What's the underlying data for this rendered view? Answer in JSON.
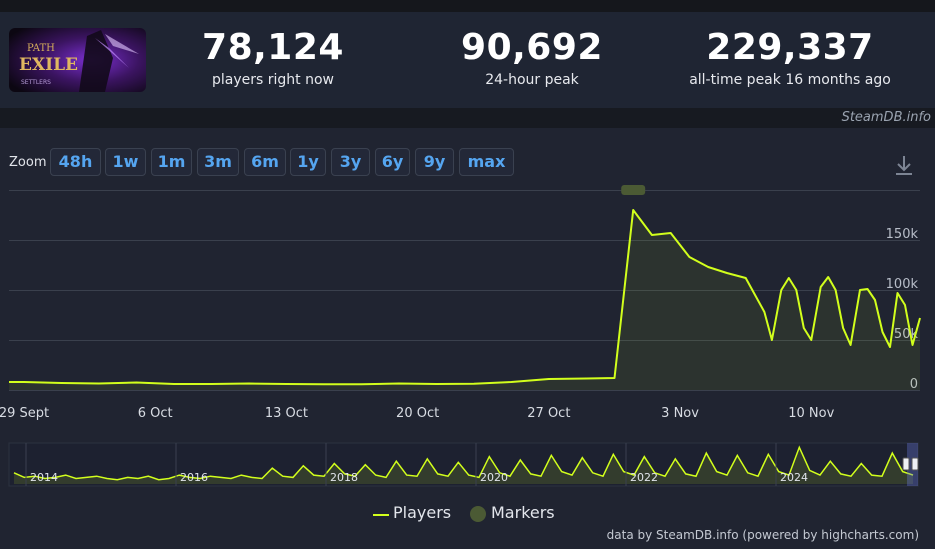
{
  "stats": [
    {
      "value": "78,124",
      "label": "players right now"
    },
    {
      "value": "90,692",
      "label": "24-hour peak"
    },
    {
      "value": "229,337",
      "label": "all-time peak 16 months ago"
    }
  ],
  "credit_top": "SteamDB.info",
  "zoom": {
    "label": "Zoom",
    "buttons": [
      "48h",
      "1w",
      "1m",
      "3m",
      "6m",
      "1y",
      "3y",
      "6y",
      "9y",
      "max"
    ]
  },
  "legend": {
    "players": "Players",
    "markers": "Markers"
  },
  "credit_bottom": "data by SteamDB.info (powered by highcharts.com)",
  "colors": {
    "series": "#d2ff1c",
    "marker": "#4b5a34",
    "accent": "#55a5f0"
  },
  "icons": {
    "download": "download-icon",
    "game": "game-logo"
  },
  "chart_data": {
    "type": "line",
    "y_ticks": [
      0,
      50000,
      100000,
      150000
    ],
    "y_tick_labels": [
      "0",
      "50k",
      "100k",
      "150k"
    ],
    "ylim": [
      0,
      200000
    ],
    "x_ticks": [
      {
        "label": "29 Sept",
        "day": 0
      },
      {
        "label": "6 Oct",
        "day": 7
      },
      {
        "label": "13 Oct",
        "day": 14
      },
      {
        "label": "20 Oct",
        "day": 21
      },
      {
        "label": "27 Oct",
        "day": 28
      },
      {
        "label": "3 Nov",
        "day": 35
      },
      {
        "label": "10 Nov",
        "day": 42
      }
    ],
    "xlim": [
      -0.8,
      47.8
    ],
    "series": [
      {
        "name": "Players",
        "points": [
          [
            -0.8,
            8000
          ],
          [
            0,
            8000
          ],
          [
            2,
            7000
          ],
          [
            4,
            6500
          ],
          [
            6,
            7500
          ],
          [
            8,
            6000
          ],
          [
            10,
            6000
          ],
          [
            12,
            6500
          ],
          [
            14,
            6000
          ],
          [
            16,
            5800
          ],
          [
            18,
            5800
          ],
          [
            20,
            6500
          ],
          [
            22,
            6000
          ],
          [
            24,
            6200
          ],
          [
            26,
            8000
          ],
          [
            28,
            11000
          ],
          [
            30,
            11500
          ],
          [
            31.5,
            12000
          ],
          [
            32.5,
            180000
          ],
          [
            33.5,
            155000
          ],
          [
            34.5,
            157000
          ],
          [
            35.5,
            133000
          ],
          [
            36.5,
            123000
          ],
          [
            37.5,
            117000
          ],
          [
            38.5,
            112000
          ],
          [
            39.5,
            78000
          ],
          [
            39.9,
            50000
          ],
          [
            40.4,
            100000
          ],
          [
            40.8,
            112000
          ],
          [
            41.2,
            100000
          ],
          [
            41.6,
            62000
          ],
          [
            42,
            50000
          ],
          [
            42.5,
            103000
          ],
          [
            42.9,
            113000
          ],
          [
            43.3,
            100000
          ],
          [
            43.7,
            62000
          ],
          [
            44.1,
            45000
          ],
          [
            44.6,
            100000
          ],
          [
            45,
            101000
          ],
          [
            45.4,
            90000
          ],
          [
            45.8,
            58000
          ],
          [
            46.2,
            43000
          ],
          [
            46.6,
            97000
          ],
          [
            47,
            85000
          ],
          [
            47.4,
            45000
          ],
          [
            47.8,
            72000
          ]
        ]
      }
    ],
    "navigator": {
      "year_labels": [
        "2014",
        "2016",
        "2018",
        "2020",
        "2022",
        "2024"
      ],
      "series": [
        8,
        4,
        5,
        3,
        4,
        6,
        3,
        4,
        5,
        3,
        2,
        4,
        3,
        5,
        2,
        3,
        6,
        4,
        3,
        5,
        4,
        3,
        6,
        4,
        3,
        12,
        5,
        4,
        14,
        6,
        5,
        16,
        7,
        5,
        15,
        6,
        4,
        18,
        6,
        5,
        20,
        7,
        5,
        17,
        6,
        4,
        22,
        8,
        5,
        19,
        7,
        5,
        23,
        9,
        6,
        21,
        8,
        5,
        24,
        9,
        6,
        22,
        8,
        5,
        20,
        7,
        5,
        25,
        9,
        6,
        23,
        8,
        5,
        24,
        9,
        6,
        30,
        10,
        6,
        18,
        7,
        5,
        16,
        6,
        5,
        25,
        9,
        6
      ]
    }
  }
}
